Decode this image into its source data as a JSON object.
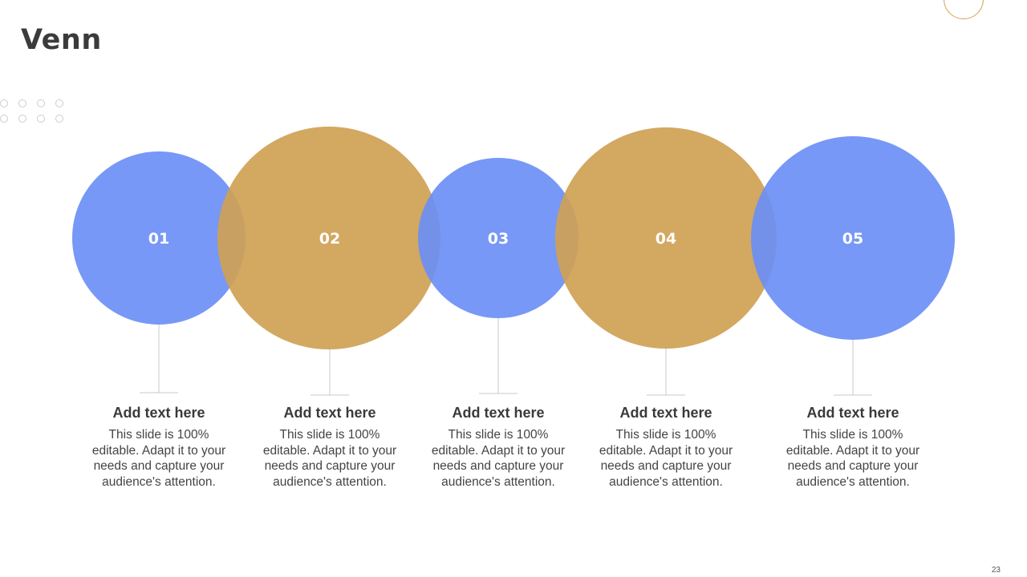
{
  "slide": {
    "title": "Venn",
    "page_number": "23"
  },
  "colors": {
    "blue": "#6b8ff5",
    "gold": "#d0a35a",
    "connector": "#c8c8c8"
  },
  "items": [
    {
      "number": "01",
      "color": "blue",
      "heading": "Add text here",
      "body": "This slide is 100% editable. Adapt it to your needs and capture your audience's attention."
    },
    {
      "number": "02",
      "color": "gold",
      "heading": "Add text here",
      "body": "This slide is 100% editable. Adapt it to your needs and capture your audience's attention."
    },
    {
      "number": "03",
      "color": "blue",
      "heading": "Add text here",
      "body": "This slide is 100% editable. Adapt it to your needs and capture your audience's attention."
    },
    {
      "number": "04",
      "color": "gold",
      "heading": "Add text here",
      "body": "This slide is 100% editable. Adapt it to your needs and capture your audience's attention."
    },
    {
      "number": "05",
      "color": "blue",
      "heading": "Add text here",
      "body": "This slide is 100% editable. Adapt it to your needs and capture your audience's attention."
    }
  ]
}
